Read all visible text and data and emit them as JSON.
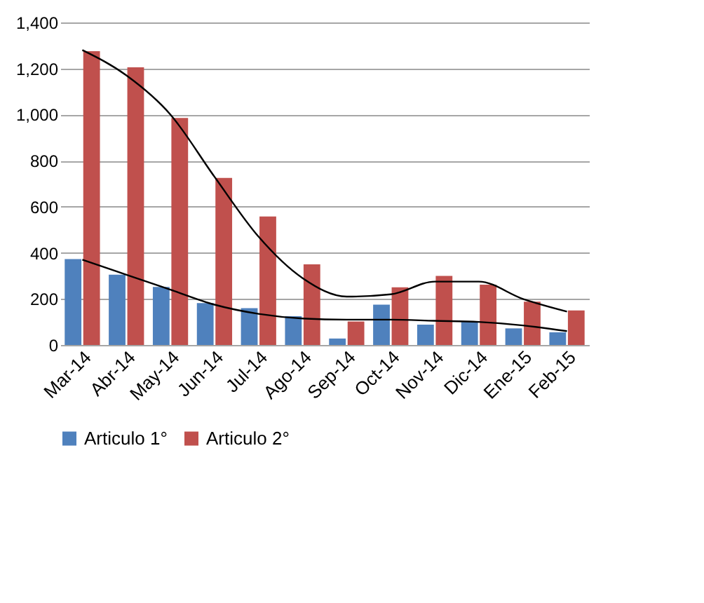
{
  "chart_data": {
    "type": "bar",
    "categories": [
      "Mar-14",
      "Abr-14",
      "May-14",
      "Jun-14",
      "Jul-14",
      "Ago-14",
      "Sep-14",
      "Oct-14",
      "Nov-14",
      "Dic-14",
      "Ene-15",
      "Feb-15"
    ],
    "series": [
      {
        "name": "Articulo 1°",
        "color": "#4f81bd",
        "values": [
          373,
          305,
          252,
          182,
          160,
          125,
          28,
          175,
          88,
          100,
          72,
          55
        ]
      },
      {
        "name": "Articulo 2°",
        "color": "#c0504d",
        "values": [
          1275,
          1205,
          985,
          725,
          558,
          350,
          102,
          250,
          300,
          262,
          188,
          150
        ]
      },
      {
        "type": "line",
        "color": "#000000",
        "values": [
          370,
          305,
          240,
          175,
          135,
          115,
          110,
          110,
          105,
          100,
          85,
          60
        ]
      },
      {
        "type": "line",
        "color": "#000000",
        "values": [
          1280,
          1170,
          1000,
          730,
          470,
          290,
          210,
          220,
          275,
          275,
          200,
          145
        ]
      }
    ],
    "ylim": [
      0,
      1400
    ],
    "yticks": [
      0,
      200,
      400,
      600,
      800,
      {
        "value": 1000,
        "label": "1,000"
      },
      {
        "value": 1200,
        "label": "1,200"
      },
      {
        "value": 1400,
        "label": "1,400"
      }
    ],
    "grid": "y",
    "legend": "bottom"
  }
}
